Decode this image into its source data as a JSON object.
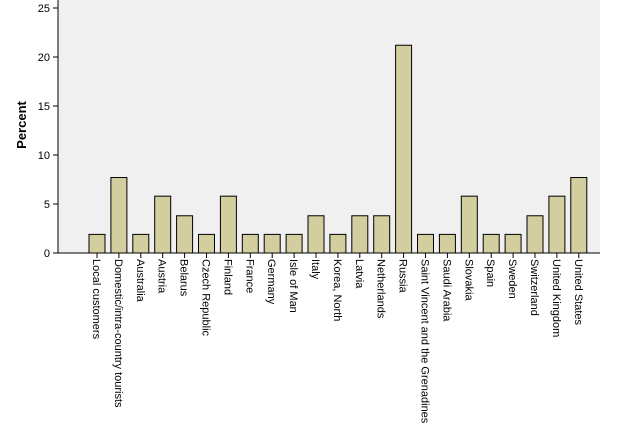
{
  "chart_data": {
    "type": "bar",
    "y_label": "Percent",
    "categories": [
      "Local customers",
      "Domestic/intra-country tourists",
      "Australia",
      "Austria",
      "Belarus",
      "Czech Republic",
      "Finland",
      "France",
      "Germany",
      "Isle of Man",
      "Italy",
      "Korea, North",
      "Latvia",
      "Netherlands",
      "Russia",
      "Saint Vincent and the Grenadines",
      "Saudi Arabia",
      "Slovakia",
      "Spain",
      "Sweden",
      "Switzerland",
      "United Kingdom",
      "United States"
    ],
    "values": [
      1.9,
      7.7,
      1.9,
      5.8,
      3.8,
      1.9,
      5.8,
      1.9,
      1.9,
      1.9,
      3.8,
      1.9,
      3.8,
      3.8,
      21.2,
      1.9,
      1.9,
      5.8,
      1.9,
      1.9,
      3.8,
      5.8,
      7.7
    ],
    "color": "#d3ce9f",
    "ylim": [
      0,
      25
    ],
    "yticks": [
      0,
      5,
      10,
      15,
      20,
      25
    ]
  }
}
